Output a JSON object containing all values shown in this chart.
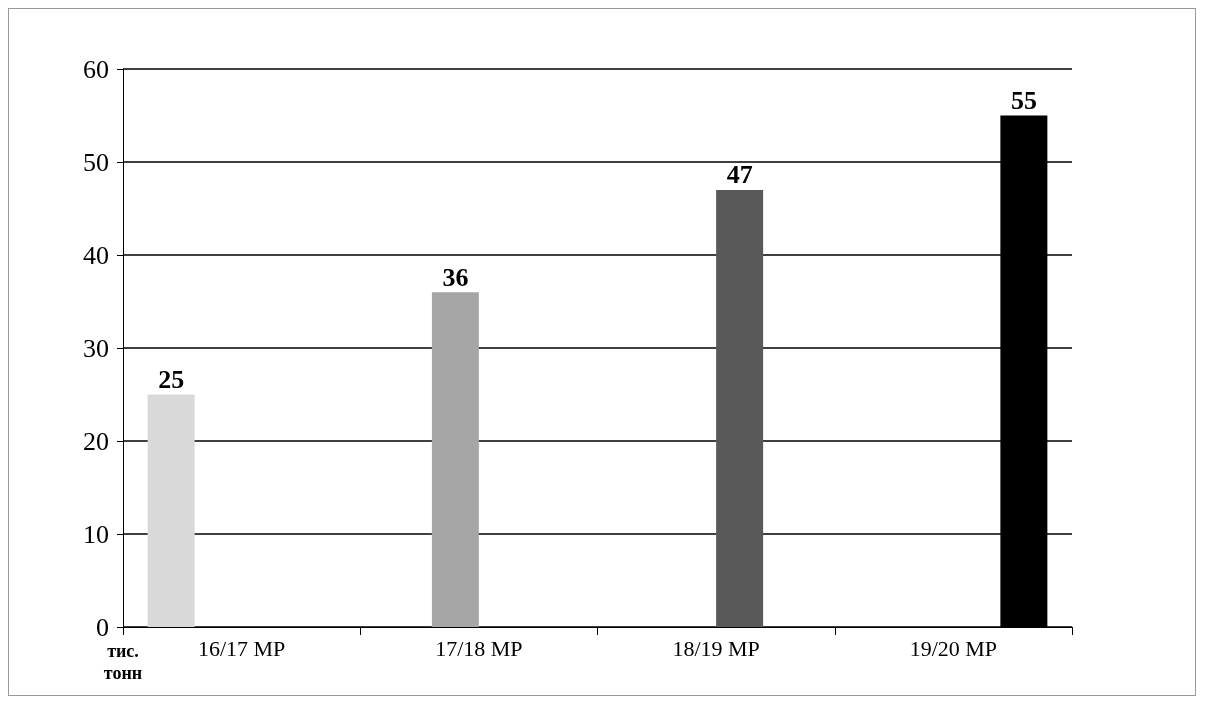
{
  "chart_data": {
    "type": "bar",
    "ylabel": "тис. тонн",
    "categories": [
      "16/17 МР",
      "17/18 МР",
      "18/19 МР",
      "19/20 МР"
    ],
    "series": [
      {
        "color": "#d9d9d9",
        "values": [
          25,
          null,
          null,
          null
        ]
      },
      {
        "color": "#a6a6a6",
        "values": [
          null,
          36,
          null,
          null
        ]
      },
      {
        "color": "#595959",
        "values": [
          null,
          null,
          47,
          null
        ]
      },
      {
        "color": "#000000",
        "values": [
          null,
          null,
          null,
          55
        ]
      }
    ],
    "ylim": [
      0,
      60
    ],
    "yticks": [
      0,
      10,
      20,
      30,
      40,
      50,
      60
    ],
    "grid": "y",
    "data_labels": true
  }
}
